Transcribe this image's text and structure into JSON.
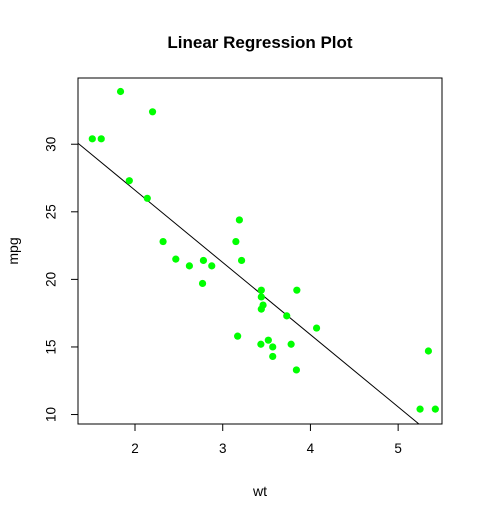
{
  "chart_data": {
    "type": "scatter",
    "title": "Linear Regression Plot",
    "xlabel": "wt",
    "ylabel": "mpg",
    "xlim": [
      1.35,
      5.5
    ],
    "ylim": [
      9.3,
      34.9
    ],
    "xticks": [
      2,
      3,
      4,
      5
    ],
    "yticks": [
      10,
      15,
      20,
      25,
      30
    ],
    "grid": false,
    "point_color": "#00ff00",
    "line_color": "#000000",
    "points": [
      {
        "x": 2.62,
        "y": 21.0
      },
      {
        "x": 2.875,
        "y": 21.0
      },
      {
        "x": 2.32,
        "y": 22.8
      },
      {
        "x": 3.215,
        "y": 21.4
      },
      {
        "x": 3.44,
        "y": 18.7
      },
      {
        "x": 3.46,
        "y": 18.1
      },
      {
        "x": 3.57,
        "y": 14.3
      },
      {
        "x": 3.19,
        "y": 24.4
      },
      {
        "x": 3.15,
        "y": 22.8
      },
      {
        "x": 3.44,
        "y": 19.2
      },
      {
        "x": 3.44,
        "y": 17.8
      },
      {
        "x": 4.07,
        "y": 16.4
      },
      {
        "x": 3.73,
        "y": 17.3
      },
      {
        "x": 3.78,
        "y": 15.2
      },
      {
        "x": 5.25,
        "y": 10.4
      },
      {
        "x": 5.424,
        "y": 10.4
      },
      {
        "x": 5.345,
        "y": 14.7
      },
      {
        "x": 2.2,
        "y": 32.4
      },
      {
        "x": 1.615,
        "y": 30.4
      },
      {
        "x": 1.835,
        "y": 33.9
      },
      {
        "x": 2.465,
        "y": 21.5
      },
      {
        "x": 3.52,
        "y": 15.5
      },
      {
        "x": 3.435,
        "y": 15.2
      },
      {
        "x": 3.84,
        "y": 13.3
      },
      {
        "x": 3.845,
        "y": 19.2
      },
      {
        "x": 1.935,
        "y": 27.3
      },
      {
        "x": 2.14,
        "y": 26.0
      },
      {
        "x": 1.513,
        "y": 30.4
      },
      {
        "x": 3.17,
        "y": 15.8
      },
      {
        "x": 2.77,
        "y": 19.7
      },
      {
        "x": 3.57,
        "y": 15.0
      },
      {
        "x": 2.78,
        "y": 21.4
      }
    ],
    "regression": {
      "intercept": 37.285,
      "slope": -5.344
    }
  }
}
